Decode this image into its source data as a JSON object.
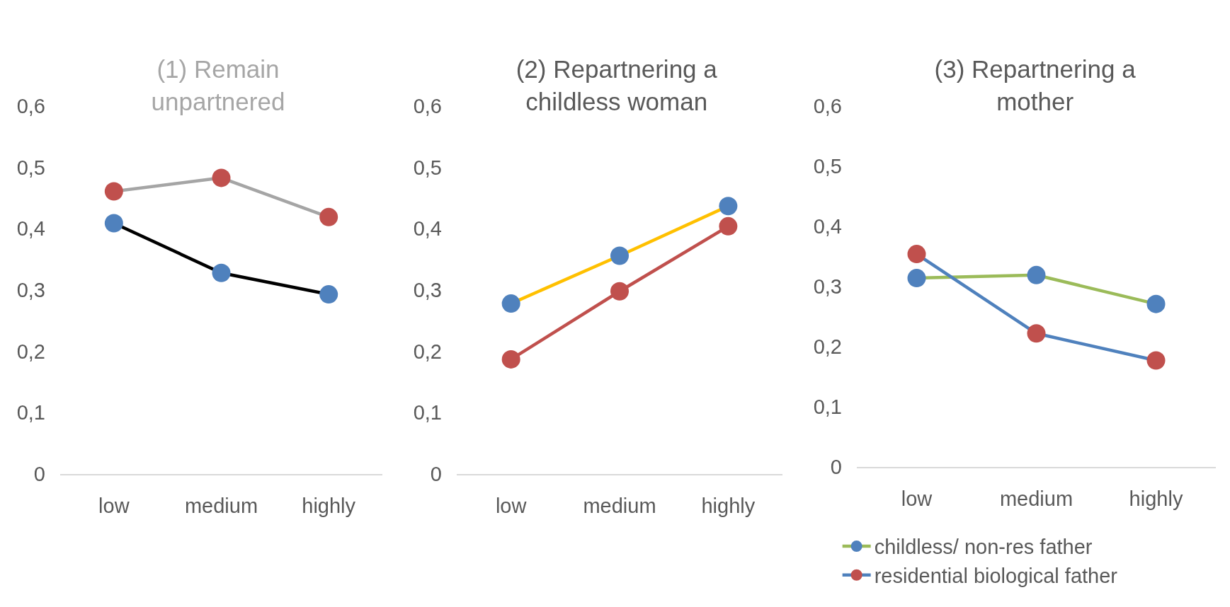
{
  "chart_data": [
    {
      "type": "line",
      "title": "(1) Remain unpartnered",
      "categories": [
        "low",
        "medium",
        "highly"
      ],
      "ylim": [
        0,
        0.6
      ],
      "yticks": [
        {
          "value": 0,
          "label": "0"
        },
        {
          "value": 0.1,
          "label": "0,1"
        },
        {
          "value": 0.2,
          "label": "0,2"
        },
        {
          "value": 0.3,
          "label": "0,3"
        },
        {
          "value": 0.4,
          "label": "0,4"
        },
        {
          "value": 0.5,
          "label": "0,5"
        },
        {
          "value": 0.6,
          "label": "0,6"
        }
      ],
      "grid": false,
      "legend": false,
      "marker": "circle",
      "line_style": "solid",
      "series": [
        {
          "color": "#000000",
          "colors": [
            "#4f81bd",
            "#4f81bd",
            "#4f81bd"
          ],
          "values": [
            0.409,
            0.328,
            0.293
          ]
        },
        {
          "color": "#a5a5a5",
          "colors": [
            "#c0504d",
            "#c0504d",
            "#c0504d"
          ],
          "values": [
            0.461,
            0.483,
            0.419
          ]
        }
      ]
    },
    {
      "type": "line",
      "title": "(2) Repartnering a childless woman",
      "categories": [
        "low",
        "medium",
        "highly"
      ],
      "ylim": [
        0,
        0.6
      ],
      "yticks": [
        {
          "value": 0,
          "label": "0"
        },
        {
          "value": 0.1,
          "label": "0,1"
        },
        {
          "value": 0.2,
          "label": "0,2"
        },
        {
          "value": 0.3,
          "label": "0,3"
        },
        {
          "value": 0.4,
          "label": "0,4"
        },
        {
          "value": 0.5,
          "label": "0,5"
        },
        {
          "value": 0.6,
          "label": "0,6"
        }
      ],
      "grid": false,
      "legend": false,
      "marker": "circle",
      "line_style": "solid",
      "series": [
        {
          "color": "#ffc000",
          "colors": [
            "#4f81bd",
            "#4f81bd",
            "#4f81bd"
          ],
          "values": [
            0.278,
            0.356,
            0.437
          ]
        },
        {
          "color": "#c0504d",
          "colors": [
            "#c0504d",
            "#c0504d",
            "#c0504d"
          ],
          "values": [
            0.187,
            0.298,
            0.404
          ]
        }
      ]
    },
    {
      "type": "line",
      "title": "(3) Repartnering a mother",
      "categories": [
        "low",
        "medium",
        "highly"
      ],
      "ylim": [
        0,
        0.6
      ],
      "yticks": [
        {
          "value": 0,
          "label": "0"
        },
        {
          "value": 0.1,
          "label": "0,1"
        },
        {
          "value": 0.2,
          "label": "0,2"
        },
        {
          "value": 0.3,
          "label": "0,3"
        },
        {
          "value": 0.4,
          "label": "0,4"
        },
        {
          "value": 0.5,
          "label": "0,5"
        },
        {
          "value": 0.6,
          "label": "0,6"
        }
      ],
      "grid": false,
      "legend": "bottom",
      "marker": "circle",
      "line_style": "solid",
      "series": [
        {
          "name": "childless/ non-res father",
          "color": "#9bbb59",
          "colors": [
            "#4f81bd",
            "#4f81bd",
            "#4f81bd"
          ],
          "values": [
            0.314,
            0.319,
            0.271
          ]
        },
        {
          "name": "residential biological father",
          "color": "#4f81bd",
          "colors": [
            "#c0504d",
            "#c0504d",
            "#c0504d"
          ],
          "values": [
            0.354,
            0.222,
            0.177
          ]
        }
      ]
    }
  ]
}
